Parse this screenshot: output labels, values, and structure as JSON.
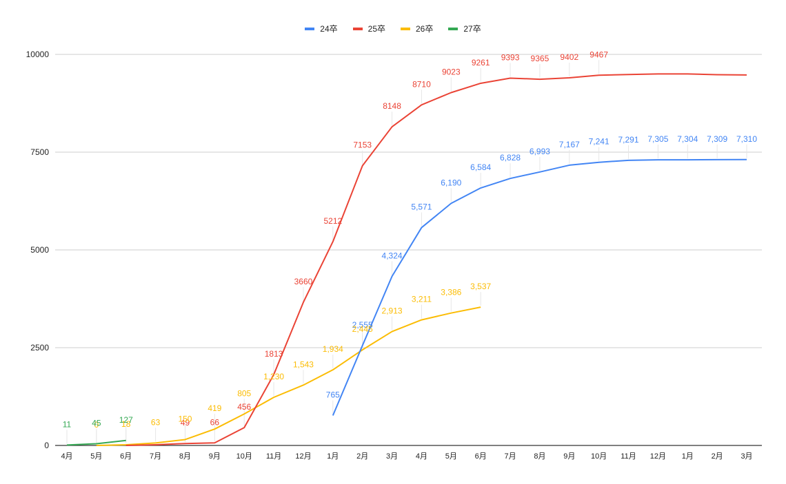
{
  "chart_data": {
    "type": "line",
    "title": "",
    "xlabel": "",
    "ylabel": "",
    "ylim": [
      0,
      10000
    ],
    "yticks": [
      0,
      2500,
      5000,
      7500,
      10000
    ],
    "grid": true,
    "legend_position": "top",
    "categories": [
      "4月",
      "5月",
      "6月",
      "7月",
      "8月",
      "9月",
      "10月",
      "11月",
      "12月",
      "1月",
      "2月",
      "3月",
      "4月",
      "5月",
      "6月",
      "7月",
      "8月",
      "9月",
      "10月",
      "11月",
      "12月",
      "1月",
      "2月",
      "3月"
    ],
    "series": [
      {
        "name": "24卒",
        "color": "#4285f4",
        "values": [
          null,
          null,
          null,
          null,
          null,
          null,
          null,
          null,
          null,
          765,
          2555,
          4324,
          5571,
          6190,
          6584,
          6828,
          6993,
          7167,
          7241,
          7291,
          7305,
          7304,
          7309,
          7310
        ],
        "labels": [
          null,
          null,
          null,
          null,
          null,
          null,
          null,
          null,
          null,
          "765",
          "2,555",
          "4,324",
          "5,571",
          "6,190",
          "6,584",
          "6,828",
          "6,993",
          "7,167",
          "7,241",
          "7,291",
          "7,305",
          "7,304",
          "7,309",
          "7,310"
        ]
      },
      {
        "name": "25卒",
        "color": "#ea4335",
        "values": [
          null,
          null,
          0,
          18,
          49,
          66,
          456,
          1813,
          3660,
          5212,
          7153,
          8148,
          8710,
          9023,
          9261,
          9393,
          9365,
          9402,
          9467,
          9485,
          9500,
          9500,
          9480,
          9475
        ],
        "labels": [
          null,
          null,
          null,
          null,
          "49",
          "66",
          "456",
          "1813",
          "3660",
          "5212",
          "7153",
          "8148",
          "8710",
          "9023",
          "9261",
          "9393",
          "9365",
          "9402",
          "9467",
          null,
          null,
          null,
          null,
          null
        ]
      },
      {
        "name": "26卒",
        "color": "#fbbc04",
        "values": [
          null,
          0,
          18,
          63,
          150,
          419,
          805,
          1230,
          1543,
          1934,
          2445,
          2913,
          3211,
          3386,
          3537,
          null,
          null,
          null,
          null,
          null,
          null,
          null,
          null,
          null
        ],
        "labels": [
          null,
          "0",
          "18",
          "63",
          "150",
          "419",
          "805",
          "1,230",
          "1,543",
          "1,934",
          "2,445",
          "2,913",
          "3,211",
          "3,386",
          "3,537",
          null,
          null,
          null,
          null,
          null,
          null,
          null,
          null,
          null
        ]
      },
      {
        "name": "27卒",
        "color": "#34a853",
        "values": [
          11,
          45,
          127,
          null,
          null,
          null,
          null,
          null,
          null,
          null,
          null,
          null,
          null,
          null,
          null,
          null,
          null,
          null,
          null,
          null,
          null,
          null,
          null,
          null
        ],
        "labels": [
          "11",
          "45",
          "127",
          null,
          null,
          null,
          null,
          null,
          null,
          null,
          null,
          null,
          null,
          null,
          null,
          null,
          null,
          null,
          null,
          null,
          null,
          null,
          null,
          null
        ]
      }
    ]
  },
  "legend": {
    "items": [
      {
        "label": "24卒",
        "color": "#4285f4"
      },
      {
        "label": "25卒",
        "color": "#ea4335"
      },
      {
        "label": "26卒",
        "color": "#fbbc04"
      },
      {
        "label": "27卒",
        "color": "#34a853"
      }
    ]
  },
  "axes": {
    "y_tick_labels": [
      "0",
      "2500",
      "5000",
      "7500",
      "10000"
    ]
  }
}
